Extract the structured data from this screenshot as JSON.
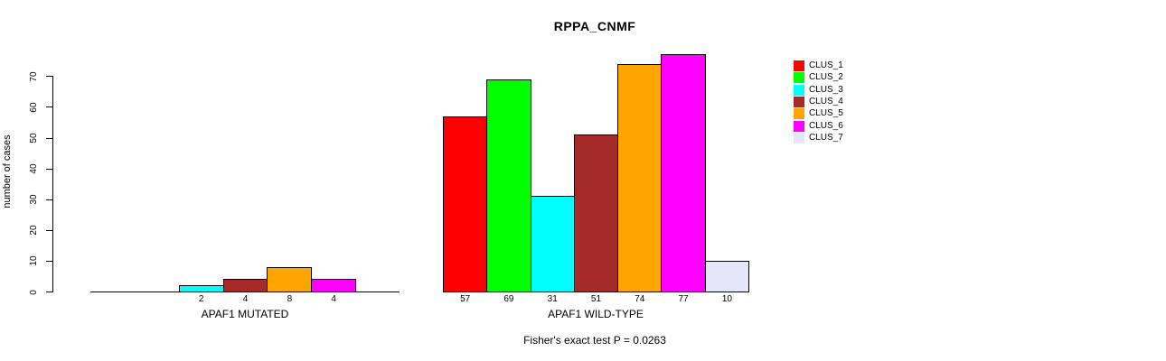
{
  "chart_data": {
    "type": "bar",
    "title": "RPPA_CNMF",
    "xlabel": "",
    "ylabel": "number of cases",
    "ylim": [
      0,
      77
    ],
    "yticks": [
      0,
      10,
      20,
      30,
      40,
      50,
      60,
      70
    ],
    "grid": false,
    "legend_position": "right",
    "categories": [
      "CLUS_1",
      "CLUS_2",
      "CLUS_3",
      "CLUS_4",
      "CLUS_5",
      "CLUS_6",
      "CLUS_7"
    ],
    "colors": [
      "#FF0000",
      "#00FF00",
      "#00FFFF",
      "#A52A2A",
      "#FFA500",
      "#FF00FF",
      "#E6E6FA"
    ],
    "groups": [
      {
        "label": "APAF1 MUTATED",
        "values": [
          0,
          0,
          2,
          4,
          8,
          4,
          0
        ],
        "bar_labels": [
          "",
          "",
          "2",
          "4",
          "8",
          "4",
          ""
        ]
      },
      {
        "label": "APAF1 WILD-TYPE",
        "values": [
          57,
          69,
          31,
          51,
          74,
          77,
          10
        ],
        "bar_labels": [
          "57",
          "69",
          "31",
          "51",
          "74",
          "77",
          "10"
        ]
      }
    ],
    "annotation": "Fisher's exact test P = 0.0263"
  }
}
